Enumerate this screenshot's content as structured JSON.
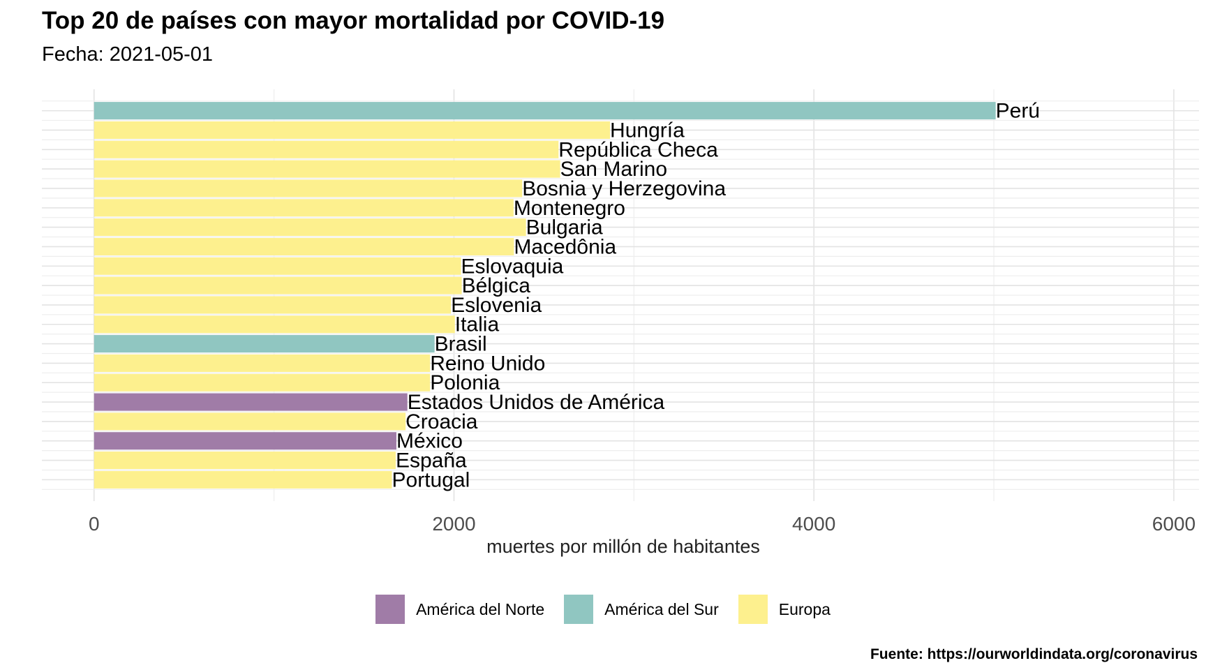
{
  "chart_data": {
    "type": "bar",
    "orientation": "horizontal",
    "title": "Top 20 de países con mayor mortalidad por COVID-19",
    "subtitle": "Fecha:  2021-05-01",
    "xlabel": "muertes por millón de habitantes",
    "ylabel": "",
    "xlim": [
      -290,
      6140
    ],
    "xticks": [
      0,
      2000,
      4000,
      6000
    ],
    "grid": true,
    "legend_position": "bottom",
    "caption": "Fuente: https://ourworldindata.org/coronavirus",
    "groups": [
      {
        "name": "América del Norte",
        "color": "#a07ca7"
      },
      {
        "name": "América del Sur",
        "color": "#90c6c1"
      },
      {
        "name": "Europa",
        "color": "#fdf08e"
      }
    ],
    "categories": [
      "Perú",
      "Hungría",
      "República Checa",
      "San Marino",
      "Bosnia y Herzegovina",
      "Montenegro",
      "Bulgaria",
      "Macedônia",
      "Eslovaquia",
      "Bélgica",
      "Eslovenia",
      "Italia",
      "Brasil",
      "Reino Unido",
      "Polonia",
      "Estados Unidos de América",
      "Croacia",
      "México",
      "España",
      "Portugal"
    ],
    "values": [
      5010,
      2867,
      2581,
      2590,
      2379,
      2331,
      2400,
      2333,
      2039,
      2043,
      1983,
      2005,
      1892,
      1867,
      1867,
      1741,
      1731,
      1680,
      1676,
      1655
    ],
    "group_of": [
      "América del Sur",
      "Europa",
      "Europa",
      "Europa",
      "Europa",
      "Europa",
      "Europa",
      "Europa",
      "Europa",
      "Europa",
      "Europa",
      "Europa",
      "América del Sur",
      "Europa",
      "Europa",
      "América del Norte",
      "Europa",
      "América del Norte",
      "Europa",
      "Europa"
    ]
  }
}
